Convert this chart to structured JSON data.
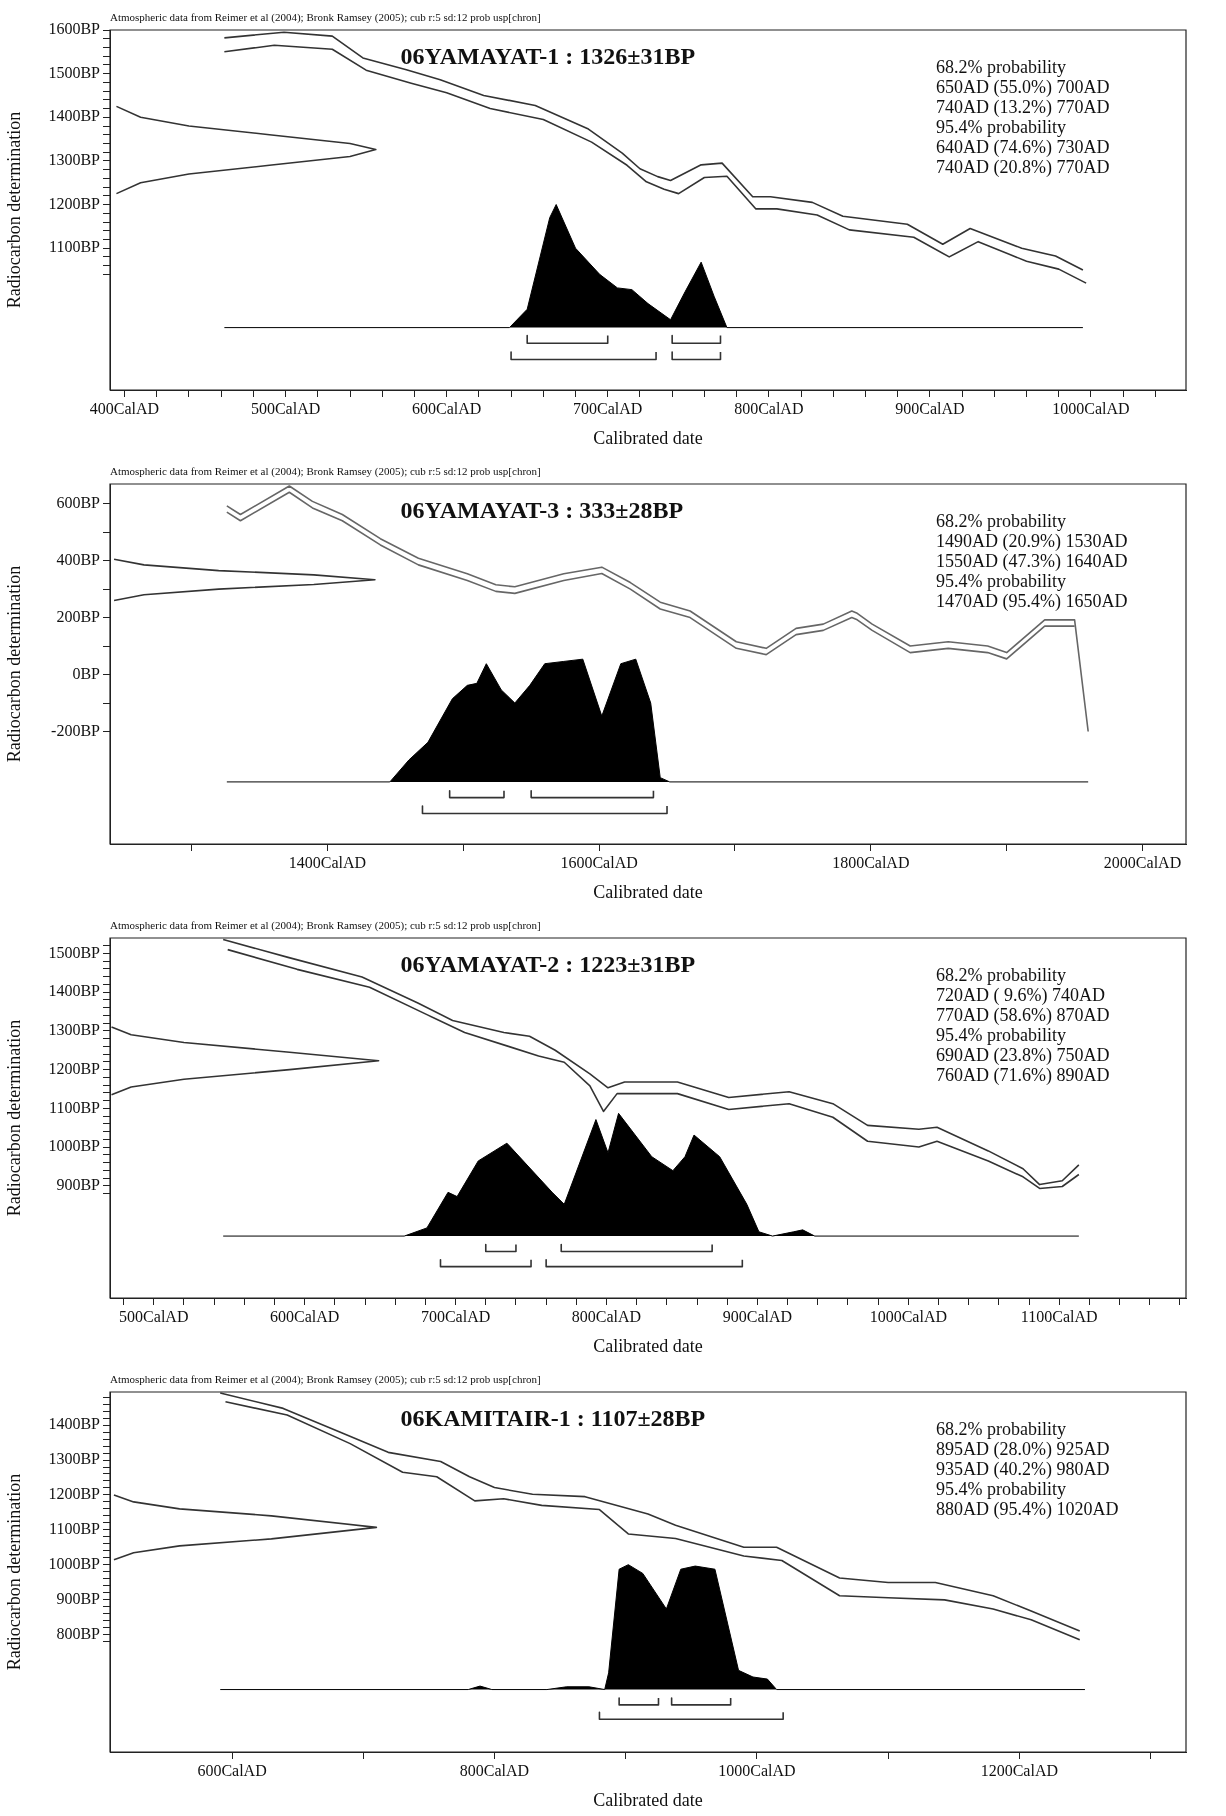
{
  "chart_data": [
    {
      "type": "line",
      "title": "06YAMAYAT-1 : 1326±31BP",
      "xlabel": "Calibrated date",
      "ylabel": "Radiocarbon determination",
      "grid": false,
      "annotations": [
        "Atmospheric data from Reimer et al (2004); Bronk Ramsey (2005); cub r:5 sd:12 prob usp[chron]",
        "68.2% probability",
        "650AD (55.0%) 700AD",
        "740AD (13.2%) 770AD",
        "95.4% probability",
        "640AD (74.6%) 730AD",
        "740AD (20.8%) 770AD"
      ],
      "xlim": [
        391,
        1059
      ],
      "ylim": [
        775,
        1600
      ],
      "xticks": [
        {
          "value": 400,
          "label": "400CalAD"
        },
        {
          "value": 420,
          "label": null
        },
        {
          "value": 440,
          "label": null
        },
        {
          "value": 460,
          "label": null
        },
        {
          "value": 480,
          "label": null
        },
        {
          "value": 500,
          "label": "500CalAD"
        },
        {
          "value": 520,
          "label": null
        },
        {
          "value": 540,
          "label": null
        },
        {
          "value": 560,
          "label": null
        },
        {
          "value": 580,
          "label": null
        },
        {
          "value": 600,
          "label": "600CalAD"
        },
        {
          "value": 620,
          "label": null
        },
        {
          "value": 640,
          "label": null
        },
        {
          "value": 660,
          "label": null
        },
        {
          "value": 680,
          "label": null
        },
        {
          "value": 700,
          "label": "700CalAD"
        },
        {
          "value": 720,
          "label": null
        },
        {
          "value": 740,
          "label": null
        },
        {
          "value": 760,
          "label": null
        },
        {
          "value": 780,
          "label": null
        },
        {
          "value": 800,
          "label": "800CalAD"
        },
        {
          "value": 820,
          "label": null
        },
        {
          "value": 840,
          "label": null
        },
        {
          "value": 860,
          "label": null
        },
        {
          "value": 880,
          "label": null
        },
        {
          "value": 900,
          "label": "900CalAD"
        },
        {
          "value": 920,
          "label": null
        },
        {
          "value": 940,
          "label": null
        },
        {
          "value": 960,
          "label": null
        },
        {
          "value": 980,
          "label": null
        },
        {
          "value": 1000,
          "label": "1000CalAD"
        },
        {
          "value": 1020,
          "label": null
        },
        {
          "value": 1040,
          "label": null
        }
      ],
      "yticks": [
        {
          "value": 1040,
          "label": null
        },
        {
          "value": 1060,
          "label": null
        },
        {
          "value": 1080,
          "label": null
        },
        {
          "value": 1100,
          "label": "1100BP"
        },
        {
          "value": 1120,
          "label": null
        },
        {
          "value": 1140,
          "label": null
        },
        {
          "value": 1160,
          "label": null
        },
        {
          "value": 1180,
          "label": null
        },
        {
          "value": 1200,
          "label": "1200BP"
        },
        {
          "value": 1220,
          "label": null
        },
        {
          "value": 1240,
          "label": null
        },
        {
          "value": 1260,
          "label": null
        },
        {
          "value": 1280,
          "label": null
        },
        {
          "value": 1300,
          "label": "1300BP"
        },
        {
          "value": 1320,
          "label": null
        },
        {
          "value": 1340,
          "label": null
        },
        {
          "value": 1360,
          "label": null
        },
        {
          "value": 1380,
          "label": null
        },
        {
          "value": 1400,
          "label": "1400BP"
        },
        {
          "value": 1420,
          "label": null
        },
        {
          "value": 1440,
          "label": null
        },
        {
          "value": 1460,
          "label": null
        },
        {
          "value": 1480,
          "label": null
        },
        {
          "value": 1500,
          "label": "1500BP"
        },
        {
          "value": 1520,
          "label": null
        },
        {
          "value": 1540,
          "label": null
        },
        {
          "value": 1560,
          "label": null
        },
        {
          "value": 1580,
          "label": null
        },
        {
          "value": 1600,
          "label": "1600BP"
        }
      ],
      "series": [
        {
          "type": "line",
          "color": "#333333",
          "x": [
            462,
            499,
            529,
            548,
            575,
            596,
            623,
            655,
            688,
            709,
            720,
            731,
            739,
            758,
            771,
            790,
            801,
            827,
            846,
            886,
            908,
            925,
            957,
            978,
            995
          ],
          "values": [
            1582,
            1595,
            1586,
            1536,
            1509,
            1486,
            1450,
            1427,
            1373,
            1318,
            1282,
            1264,
            1255,
            1291,
            1295,
            1218,
            1218,
            1205,
            1173,
            1155,
            1109,
            1145,
            1100,
            1082,
            1050
          ]
        },
        {
          "type": "line",
          "color": "#333333",
          "x": [
            462,
            493,
            529,
            550,
            578,
            600,
            627,
            660,
            690,
            712,
            724,
            735,
            744,
            760,
            774,
            792,
            805,
            830,
            850,
            890,
            912,
            930,
            960,
            980,
            997
          ],
          "values": [
            1550,
            1565,
            1556,
            1508,
            1478,
            1456,
            1420,
            1395,
            1343,
            1290,
            1252,
            1235,
            1225,
            1262,
            1265,
            1190,
            1190,
            1176,
            1142,
            1125,
            1080,
            1115,
            1070,
            1052,
            1020
          ]
        },
        {
          "type": "line",
          "color": "#333333",
          "x": [
            395,
            410,
            440,
            490,
            540,
            556,
            540,
            490,
            440,
            410,
            395
          ],
          "values": [
            1425,
            1400,
            1380,
            1360,
            1340,
            1326,
            1310,
            1290,
            1270,
            1250,
            1225
          ]
        },
        {
          "type": "area",
          "color": "#000000",
          "x": [
            462,
            639,
            650,
            658,
            664,
            668,
            680,
            695,
            706,
            715,
            725,
            739,
            748,
            758,
            766,
            774,
            995
          ],
          "values": [
            918,
            918,
            960,
            1080,
            1170,
            1200,
            1100,
            1040,
            1009,
            1005,
            973,
            936,
            1000,
            1068,
            990,
            918,
            918
          ]
        },
        {
          "type": "line",
          "color": "#333333",
          "x": [
            650,
            650,
            700,
            700,
            null,
            740,
            740,
            770,
            770
          ],
          "values": [
            900,
            882,
            882,
            900,
            null,
            900,
            882,
            882,
            900
          ]
        },
        {
          "type": "line",
          "color": "#333333",
          "x": [
            640,
            640,
            730,
            730,
            null,
            740,
            740,
            770,
            770
          ],
          "values": [
            862,
            845,
            845,
            862,
            null,
            862,
            845,
            845,
            862
          ]
        }
      ]
    },
    {
      "type": "line",
      "title": "06YAMAYAT-3 : 333±28BP",
      "xlabel": "Calibrated date",
      "ylabel": "Radiocarbon determination",
      "grid": false,
      "annotations": [
        "Atmospheric data from Reimer et al (2004); Bronk Ramsey (2005); cub r:5 sd:12 prob usp[chron]",
        "68.2% probability",
        "1490AD (20.9%) 1530AD",
        "1550AD (47.3%) 1640AD",
        "95.4% probability",
        "1470AD (95.4%) 1650AD"
      ],
      "xlim": [
        1240,
        2032
      ],
      "ylim": [
        -595,
        669
      ],
      "xticks": [
        {
          "value": 1300,
          "label": null
        },
        {
          "value": 1400,
          "label": "1400CalAD"
        },
        {
          "value": 1500,
          "label": null
        },
        {
          "value": 1600,
          "label": "1600CalAD"
        },
        {
          "value": 1700,
          "label": null
        },
        {
          "value": 1800,
          "label": "1800CalAD"
        },
        {
          "value": 1900,
          "label": null
        },
        {
          "value": 2000,
          "label": "2000CalAD"
        }
      ],
      "yticks": [
        {
          "value": -200,
          "label": "-200BP"
        },
        {
          "value": -100,
          "label": null
        },
        {
          "value": 0,
          "label": "0BP"
        },
        {
          "value": 100,
          "label": null
        },
        {
          "value": 200,
          "label": "200BP"
        },
        {
          "value": 300,
          "label": null
        },
        {
          "value": 400,
          "label": "400BP"
        },
        {
          "value": 500,
          "label": null
        },
        {
          "value": 600,
          "label": "600BP"
        }
      ],
      "series": [
        {
          "type": "line",
          "color": "#666666",
          "x": [
            1326,
            1336,
            1372,
            1389,
            1411,
            1439,
            1467,
            1503,
            1524,
            1538,
            1574,
            1602,
            1623,
            1645,
            1667,
            1701,
            1723,
            1745,
            1765,
            1786,
            1790,
            1801,
            1829,
            1857,
            1886,
            1900,
            1928,
            1950,
            1960
          ],
          "values": [
            592,
            562,
            662,
            608,
            562,
            477,
            408,
            354,
            315,
            308,
            354,
            377,
            323,
            254,
            223,
            115,
            92,
            162,
            177,
            223,
            215,
            177,
            100,
            115,
            100,
            77,
            192,
            192,
            -200
          ]
        },
        {
          "type": "line",
          "color": "#666666",
          "x": [
            1326,
            1336,
            1372,
            1389,
            1411,
            1439,
            1467,
            1503,
            1524,
            1538,
            1574,
            1602,
            1623,
            1645,
            1667,
            1701,
            1723,
            1745,
            1765,
            1786,
            1790,
            1801,
            1829,
            1857,
            1886,
            1900,
            1928,
            1950
          ],
          "values": [
            570,
            540,
            640,
            585,
            540,
            455,
            385,
            330,
            292,
            285,
            330,
            355,
            300,
            230,
            200,
            92,
            70,
            140,
            155,
            200,
            192,
            155,
            77,
            92,
            77,
            55,
            170,
            170
          ]
        },
        {
          "type": "line",
          "color": "#333333",
          "x": [
            1243,
            1265,
            1320,
            1390,
            1435,
            1390,
            1320,
            1265,
            1243
          ],
          "values": [
            405,
            385,
            365,
            350,
            333,
            316,
            300,
            280,
            260
          ]
        },
        {
          "type": "area",
          "color": "#000000",
          "x": [
            1326,
            1446,
            1460,
            1474,
            1492,
            1503,
            1510,
            1517,
            1528,
            1538,
            1549,
            1560,
            1574,
            1588,
            1602,
            1616,
            1627,
            1638,
            1645,
            1652,
            1960
          ],
          "values": [
            -377,
            -377,
            -300,
            -238,
            -85,
            -38,
            -31,
            38,
            -54,
            -100,
            -38,
            38,
            46,
            54,
            -146,
            38,
            54,
            -100,
            -362,
            -377,
            -377
          ]
        },
        {
          "type": "line",
          "color": "#333333",
          "x": [
            1490,
            1490,
            1530,
            1530,
            null,
            1550,
            1550,
            1640,
            1640
          ],
          "values": [
            -408,
            -432,
            -432,
            -408,
            null,
            -408,
            -432,
            -432,
            -408
          ]
        },
        {
          "type": "line",
          "color": "#333333",
          "x": [
            1470,
            1470,
            1650,
            1650
          ],
          "values": [
            -462,
            -488,
            -488,
            -462
          ]
        }
      ]
    },
    {
      "type": "line",
      "title": "06YAMAYAT-2 : 1223±31BP",
      "xlabel": "Calibrated date",
      "ylabel": "Radiocarbon determination",
      "grid": false,
      "annotations": [
        "Atmospheric data from Reimer et al (2004); Bronk Ramsey (2005); cub r:5 sd:12 prob usp[chron]",
        "68.2% probability",
        "720AD ( 9.6%) 740AD",
        "770AD (58.6%) 870AD",
        "95.4% probability",
        "690AD (23.8%) 750AD",
        "760AD (71.6%) 890AD"
      ],
      "xlim": [
        471,
        1184
      ],
      "ylim": [
        610,
        1540
      ],
      "xticks": [
        {
          "value": 480,
          "label": null
        },
        {
          "value": 500,
          "label": "500CalAD"
        },
        {
          "value": 520,
          "label": null
        },
        {
          "value": 540,
          "label": null
        },
        {
          "value": 560,
          "label": null
        },
        {
          "value": 580,
          "label": null
        },
        {
          "value": 600,
          "label": "600CalAD"
        },
        {
          "value": 620,
          "label": null
        },
        {
          "value": 640,
          "label": null
        },
        {
          "value": 660,
          "label": null
        },
        {
          "value": 680,
          "label": null
        },
        {
          "value": 700,
          "label": "700CalAD"
        },
        {
          "value": 720,
          "label": null
        },
        {
          "value": 740,
          "label": null
        },
        {
          "value": 760,
          "label": null
        },
        {
          "value": 780,
          "label": null
        },
        {
          "value": 800,
          "label": "800CalAD"
        },
        {
          "value": 820,
          "label": null
        },
        {
          "value": 840,
          "label": null
        },
        {
          "value": 860,
          "label": null
        },
        {
          "value": 880,
          "label": null
        },
        {
          "value": 900,
          "label": "900CalAD"
        },
        {
          "value": 920,
          "label": null
        },
        {
          "value": 940,
          "label": null
        },
        {
          "value": 960,
          "label": null
        },
        {
          "value": 980,
          "label": null
        },
        {
          "value": 1000,
          "label": "1000CalAD"
        },
        {
          "value": 1020,
          "label": null
        },
        {
          "value": 1040,
          "label": null
        },
        {
          "value": 1060,
          "label": null
        },
        {
          "value": 1080,
          "label": null
        },
        {
          "value": 1100,
          "label": "1100CalAD"
        },
        {
          "value": 1120,
          "label": null
        },
        {
          "value": 1140,
          "label": null
        },
        {
          "value": 1160,
          "label": null
        },
        {
          "value": 1180,
          "label": null
        }
      ],
      "yticks": [
        {
          "value": 880,
          "label": null
        },
        {
          "value": 900,
          "label": "900BP"
        },
        {
          "value": 920,
          "label": null
        },
        {
          "value": 940,
          "label": null
        },
        {
          "value": 960,
          "label": null
        },
        {
          "value": 980,
          "label": null
        },
        {
          "value": 1000,
          "label": "1000BP"
        },
        {
          "value": 1020,
          "label": null
        },
        {
          "value": 1040,
          "label": null
        },
        {
          "value": 1060,
          "label": null
        },
        {
          "value": 1080,
          "label": null
        },
        {
          "value": 1100,
          "label": "1100BP"
        },
        {
          "value": 1120,
          "label": null
        },
        {
          "value": 1140,
          "label": null
        },
        {
          "value": 1160,
          "label": null
        },
        {
          "value": 1180,
          "label": null
        },
        {
          "value": 1200,
          "label": "1200BP"
        },
        {
          "value": 1220,
          "label": null
        },
        {
          "value": 1240,
          "label": null
        },
        {
          "value": 1260,
          "label": null
        },
        {
          "value": 1280,
          "label": null
        },
        {
          "value": 1300,
          "label": "1300BP"
        },
        {
          "value": 1320,
          "label": null
        },
        {
          "value": 1340,
          "label": null
        },
        {
          "value": 1360,
          "label": null
        },
        {
          "value": 1380,
          "label": null
        },
        {
          "value": 1400,
          "label": "1400BP"
        },
        {
          "value": 1420,
          "label": null
        },
        {
          "value": 1440,
          "label": null
        },
        {
          "value": 1460,
          "label": null
        },
        {
          "value": 1480,
          "label": null
        },
        {
          "value": 1500,
          "label": "1500BP"
        },
        {
          "value": 1520,
          "label": null
        }
      ],
      "series": [
        {
          "type": "line",
          "color": "#333333",
          "x": [
            546,
            589,
            638,
            675,
            698,
            732,
            749,
            766,
            789,
            801,
            812,
            847,
            881,
            921,
            950,
            973,
            1007,
            1019,
            1053,
            1076,
            1087,
            1102,
            1113
          ],
          "values": [
            1536,
            1490,
            1439,
            1372,
            1327,
            1296,
            1286,
            1250,
            1189,
            1153,
            1168,
            1168,
            1128,
            1143,
            1112,
            1056,
            1046,
            1051,
            990,
            944,
            903,
            913,
            954
          ]
        },
        {
          "type": "line",
          "color": "#333333",
          "x": [
            549,
            595,
            643,
            681,
            706,
            735,
            755,
            772,
            789,
            798,
            807,
            847,
            881,
            921,
            950,
            973,
            1007,
            1019,
            1053,
            1076,
            1087,
            1102,
            1113
          ],
          "values": [
            1510,
            1459,
            1413,
            1342,
            1296,
            1260,
            1235,
            1219,
            1158,
            1092,
            1138,
            1138,
            1097,
            1112,
            1077,
            1015,
            1000,
            1015,
            964,
            923,
            893,
            898,
            929
          ]
        },
        {
          "type": "line",
          "color": "#333333",
          "x": [
            472,
            485,
            520,
            590,
            649,
            590,
            520,
            485,
            472
          ],
          "values": [
            1310,
            1290,
            1270,
            1245,
            1223,
            1200,
            1175,
            1155,
            1135
          ]
        },
        {
          "type": "area",
          "color": "#000000",
          "x": [
            546,
            666,
            681,
            695,
            701,
            715,
            734,
            764,
            772,
            793,
            801,
            808,
            830,
            844,
            852,
            858,
            875,
            893,
            901,
            910,
            924,
            930,
            938,
            1113
          ],
          "values": [
            770,
            770,
            791,
            883,
            872,
            964,
            1010,
            883,
            852,
            1071,
            985,
            1087,
            975,
            939,
            975,
            1031,
            975,
            852,
            781,
            770,
            781,
            786,
            770,
            770
          ]
        },
        {
          "type": "line",
          "color": "#333333",
          "x": [
            720,
            720,
            740,
            740,
            null,
            770,
            770,
            870,
            870
          ],
          "values": [
            748,
            730,
            730,
            748,
            null,
            748,
            730,
            730,
            748
          ]
        },
        {
          "type": "line",
          "color": "#333333",
          "x": [
            690,
            690,
            750,
            750,
            null,
            760,
            760,
            890,
            890
          ],
          "values": [
            709,
            691,
            691,
            709,
            null,
            709,
            691,
            691,
            709
          ]
        }
      ]
    },
    {
      "type": "line",
      "title": "06KAMITAIR-1 : 1107±28BP",
      "xlabel": "Calibrated date",
      "ylabel": "Radiocarbon determination",
      "grid": false,
      "annotations": [
        "Atmospheric data from Reimer et al (2004); Bronk Ramsey (2005); cub r:5 sd:12 prob usp[chron]",
        "68.2% probability",
        "895AD (28.0%) 925AD",
        "935AD (40.2%) 980AD",
        "95.4% probability",
        "880AD (95.4%) 1020AD"
      ],
      "xlim": [
        507,
        1327
      ],
      "ylim": [
        463,
        1495
      ],
      "xticks": [
        {
          "value": 600,
          "label": "600CalAD"
        },
        {
          "value": 700,
          "label": null
        },
        {
          "value": 800,
          "label": "800CalAD"
        },
        {
          "value": 900,
          "label": null
        },
        {
          "value": 1000,
          "label": "1000CalAD"
        },
        {
          "value": 1100,
          "label": null
        },
        {
          "value": 1200,
          "label": "1200CalAD"
        },
        {
          "value": 1300,
          "label": null
        }
      ],
      "yticks": [
        {
          "value": 780,
          "label": null
        },
        {
          "value": 800,
          "label": "800BP"
        },
        {
          "value": 820,
          "label": null
        },
        {
          "value": 840,
          "label": null
        },
        {
          "value": 860,
          "label": null
        },
        {
          "value": 880,
          "label": null
        },
        {
          "value": 900,
          "label": "900BP"
        },
        {
          "value": 920,
          "label": null
        },
        {
          "value": 940,
          "label": null
        },
        {
          "value": 960,
          "label": null
        },
        {
          "value": 980,
          "label": null
        },
        {
          "value": 1000,
          "label": "1000BP"
        },
        {
          "value": 1020,
          "label": null
        },
        {
          "value": 1040,
          "label": null
        },
        {
          "value": 1060,
          "label": null
        },
        {
          "value": 1080,
          "label": null
        },
        {
          "value": 1100,
          "label": "1100BP"
        },
        {
          "value": 1120,
          "label": null
        },
        {
          "value": 1140,
          "label": null
        },
        {
          "value": 1160,
          "label": null
        },
        {
          "value": 1180,
          "label": null
        },
        {
          "value": 1200,
          "label": "1200BP"
        },
        {
          "value": 1220,
          "label": null
        },
        {
          "value": 1240,
          "label": null
        },
        {
          "value": 1260,
          "label": null
        },
        {
          "value": 1280,
          "label": null
        },
        {
          "value": 1300,
          "label": "1300BP"
        },
        {
          "value": 1320,
          "label": null
        },
        {
          "value": 1340,
          "label": null
        },
        {
          "value": 1360,
          "label": null
        },
        {
          "value": 1380,
          "label": null
        },
        {
          "value": 1400,
          "label": "1400BP"
        },
        {
          "value": 1420,
          "label": null
        },
        {
          "value": 1440,
          "label": null
        },
        {
          "value": 1460,
          "label": null
        },
        {
          "value": 1480,
          "label": null
        }
      ],
      "series": [
        {
          "type": "line",
          "color": "#333333",
          "x": [
            591,
            639,
            683,
            719,
            759,
            781,
            800,
            829,
            869,
            917,
            938,
            990,
            1015,
            1063,
            1100,
            1136,
            1180,
            1209,
            1246
          ],
          "values": [
            1492,
            1448,
            1379,
            1322,
            1296,
            1252,
            1221,
            1202,
            1195,
            1145,
            1113,
            1050,
            1050,
            962,
            949,
            949,
            911,
            867,
            810
          ]
        },
        {
          "type": "line",
          "color": "#333333",
          "x": [
            595,
            642,
            690,
            730,
            756,
            785,
            807,
            836,
            880,
            902,
            938,
            990,
            1019,
            1063,
            1100,
            1143,
            1180,
            1209,
            1246
          ],
          "values": [
            1467,
            1429,
            1347,
            1265,
            1252,
            1183,
            1189,
            1170,
            1158,
            1088,
            1075,
            1025,
            1012,
            911,
            905,
            899,
            873,
            842,
            785
          ]
        },
        {
          "type": "line",
          "color": "#333333",
          "x": [
            510,
            525,
            560,
            630,
            710,
            630,
            560,
            525,
            510
          ],
          "values": [
            1200,
            1180,
            1160,
            1140,
            1107,
            1074,
            1054,
            1034,
            1014
          ]
        },
        {
          "type": "area",
          "color": "#000000",
          "x": [
            591,
            780,
            789,
            798,
            840,
            855,
            872,
            884,
            887,
            895,
            902,
            913,
            931,
            942,
            953,
            968,
            986,
            997,
            1008,
            1015,
            1250
          ],
          "values": [
            642,
            642,
            652,
            642,
            642,
            650,
            650,
            642,
            690,
            987,
            1000,
            975,
            873,
            987,
            996,
            987,
            697,
            678,
            672,
            642,
            642
          ]
        },
        {
          "type": "line",
          "color": "#333333",
          "x": [
            895,
            895,
            925,
            925,
            null,
            935,
            935,
            980,
            980
          ],
          "values": [
            618,
            598,
            598,
            618,
            null,
            618,
            598,
            598,
            618
          ]
        },
        {
          "type": "line",
          "color": "#333333",
          "x": [
            880,
            880,
            1020,
            1020
          ],
          "values": [
            577,
            557,
            557,
            577
          ]
        }
      ]
    }
  ]
}
